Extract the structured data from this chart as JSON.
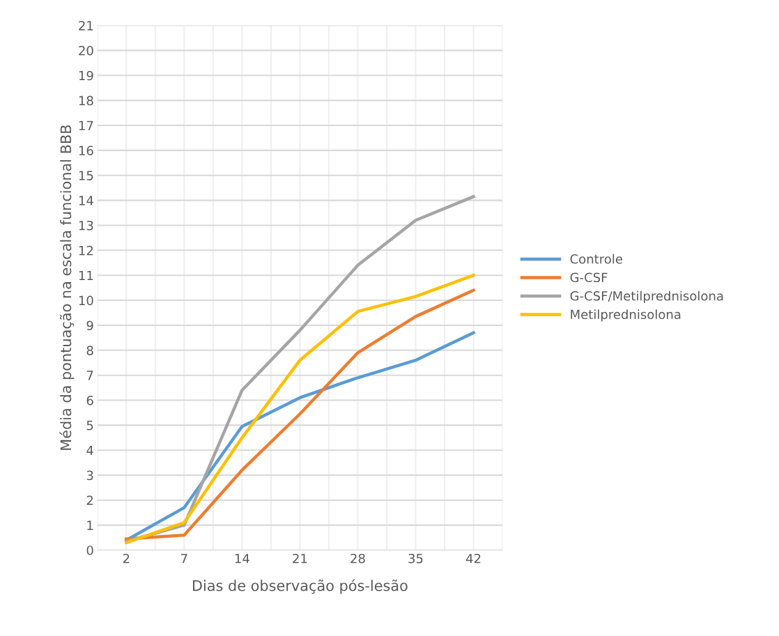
{
  "chart_data": {
    "type": "line",
    "xlabel": "Dias de observação pós-lesão",
    "ylabel": "Média da pontuação na escala funcional BBB",
    "categories": [
      "2",
      "7",
      "14",
      "21",
      "28",
      "35",
      "42"
    ],
    "series": [
      {
        "name": "Controle",
        "color": "#5b9bd5",
        "values": [
          0.4,
          1.7,
          4.95,
          6.1,
          6.9,
          7.6,
          8.7
        ]
      },
      {
        "name": "G-CSF",
        "color": "#ed7d31",
        "values": [
          0.45,
          0.6,
          3.2,
          5.45,
          7.9,
          9.35,
          10.4
        ]
      },
      {
        "name": "G-CSF/Metilprednisolona",
        "color": "#a5a5a5",
        "values": [
          0.35,
          1.0,
          6.4,
          8.8,
          11.4,
          13.2,
          14.15
        ]
      },
      {
        "name": "Metilprednisolona",
        "color": "#ffc000",
        "values": [
          0.3,
          1.1,
          4.5,
          7.6,
          9.55,
          10.15,
          11.0
        ]
      }
    ],
    "ylim": [
      0,
      21
    ],
    "yticks": [
      0,
      1,
      2,
      3,
      4,
      5,
      6,
      7,
      8,
      9,
      10,
      11,
      12,
      13,
      14,
      15,
      16,
      17,
      18,
      19,
      20,
      21
    ],
    "grid": true,
    "legend": "right",
    "marker": "none",
    "line_style": "solid"
  }
}
